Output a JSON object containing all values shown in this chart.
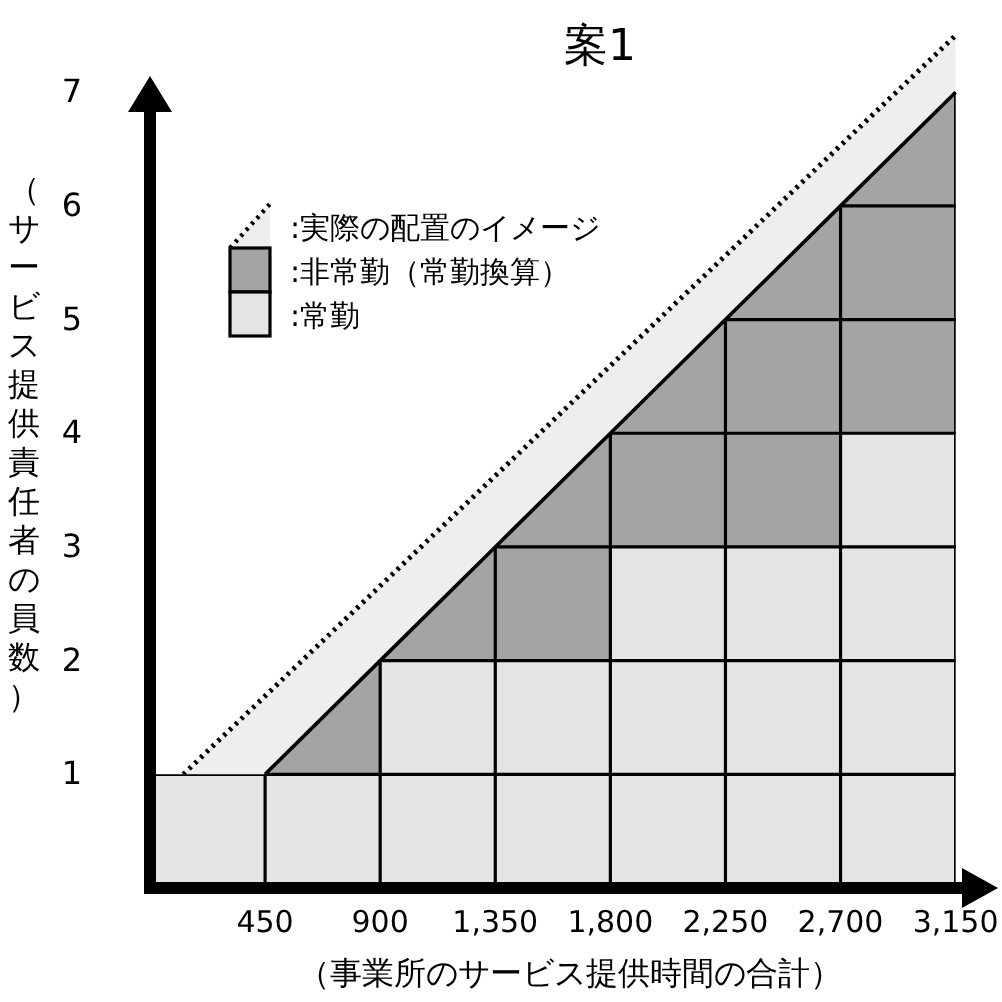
{
  "chart_data": {
    "type": "area",
    "title": "案1",
    "xlabel": "（事業所のサービス提供時間の合計）",
    "ylabel": "（サービス提供責任者の員数）",
    "xlim": [
      0,
      3300
    ],
    "ylim": [
      0,
      7.6
    ],
    "xticks": [
      450,
      900,
      {
        "value": 1350,
        "label": "1,350"
      },
      {
        "value": 1800,
        "label": "1,800"
      },
      {
        "value": 2250,
        "label": "2,250"
      },
      {
        "value": 2700,
        "label": "2,700"
      },
      {
        "value": 3150,
        "label": "3,150"
      }
    ],
    "yticks": [
      1,
      2,
      3,
      4,
      5,
      6,
      7
    ],
    "grid": true,
    "legend": "top left",
    "series": [
      {
        "name": ":実際の配置のイメージ",
        "color": "#eeeeee",
        "line_style": "dotted",
        "x": [
          130,
          3150
        ],
        "values": [
          1,
          7.5
        ]
      },
      {
        "name": ":非常勤（常勤換算）",
        "color": "#a4a4a4",
        "x": [
          450,
          900,
          1350,
          1800,
          2250,
          2700,
          3150
        ],
        "values": [
          1,
          2,
          3,
          4,
          5,
          6,
          7
        ]
      },
      {
        "name": ":常勤",
        "color": "#e4e4e4",
        "x": [
          0,
          900,
          900,
          1800,
          1800,
          2700,
          2700,
          3150
        ],
        "values": [
          1,
          1,
          2,
          2,
          3,
          3,
          4,
          4
        ]
      }
    ]
  }
}
